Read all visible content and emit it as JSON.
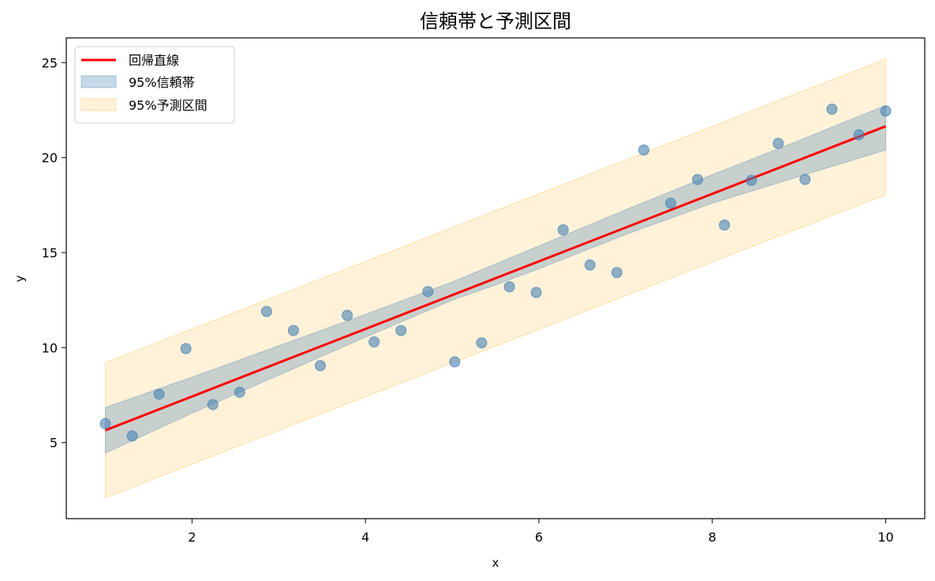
{
  "chart_data": {
    "type": "line",
    "title": "信頼帯と予測区間",
    "xlabel": "x",
    "ylabel": "y",
    "xlim": [
      0.55,
      10.45
    ],
    "ylim": [
      1.0,
      26.3
    ],
    "xticks": [
      2,
      4,
      6,
      8,
      10
    ],
    "yticks": [
      5,
      10,
      15,
      20,
      25
    ],
    "grid": false,
    "legend_position": "top-left",
    "colors": {
      "regression_line": "#ff0000",
      "confidence_band": "#4682b4",
      "prediction_band": "#ffa500",
      "points": "#4682b4"
    },
    "legend": [
      {
        "key": "regression",
        "label": "回帰直線"
      },
      {
        "key": "confidence",
        "label": "95%信頼帯"
      },
      {
        "key": "prediction",
        "label": "95%予測区間"
      }
    ],
    "regression_line": {
      "x": [
        1,
        10
      ],
      "y": [
        5.65,
        21.65
      ]
    },
    "confidence_band": {
      "x": [
        1,
        2,
        3,
        4,
        5,
        5.5,
        6,
        7,
        8,
        9,
        10
      ],
      "lower": [
        4.45,
        6.55,
        8.55,
        10.55,
        12.5,
        13.3,
        14.15,
        15.95,
        17.6,
        19.0,
        20.4
      ],
      "upper": [
        6.85,
        8.45,
        10.1,
        11.75,
        13.45,
        14.4,
        15.35,
        17.25,
        19.1,
        20.9,
        22.75
      ]
    },
    "prediction_band": {
      "x": [
        1,
        10
      ],
      "lower": [
        2.1,
        18.05
      ],
      "upper": [
        9.2,
        25.2
      ]
    },
    "scatter": {
      "x": [
        1.0,
        1.31,
        1.62,
        1.93,
        2.24,
        2.55,
        2.86,
        3.17,
        3.48,
        3.79,
        4.1,
        4.41,
        4.72,
        5.03,
        5.34,
        5.66,
        5.97,
        6.28,
        6.59,
        6.9,
        7.21,
        7.52,
        7.83,
        8.14,
        8.45,
        8.76,
        9.07,
        9.38,
        9.69,
        10.0
      ],
      "y": [
        6.0,
        5.35,
        7.55,
        9.95,
        7.0,
        7.65,
        11.9,
        10.9,
        9.05,
        11.7,
        10.3,
        10.9,
        12.95,
        9.25,
        10.25,
        13.2,
        12.9,
        16.2,
        14.35,
        13.95,
        20.4,
        17.6,
        18.85,
        16.45,
        18.8,
        20.75,
        18.85,
        22.55,
        21.2,
        22.45
      ]
    }
  }
}
